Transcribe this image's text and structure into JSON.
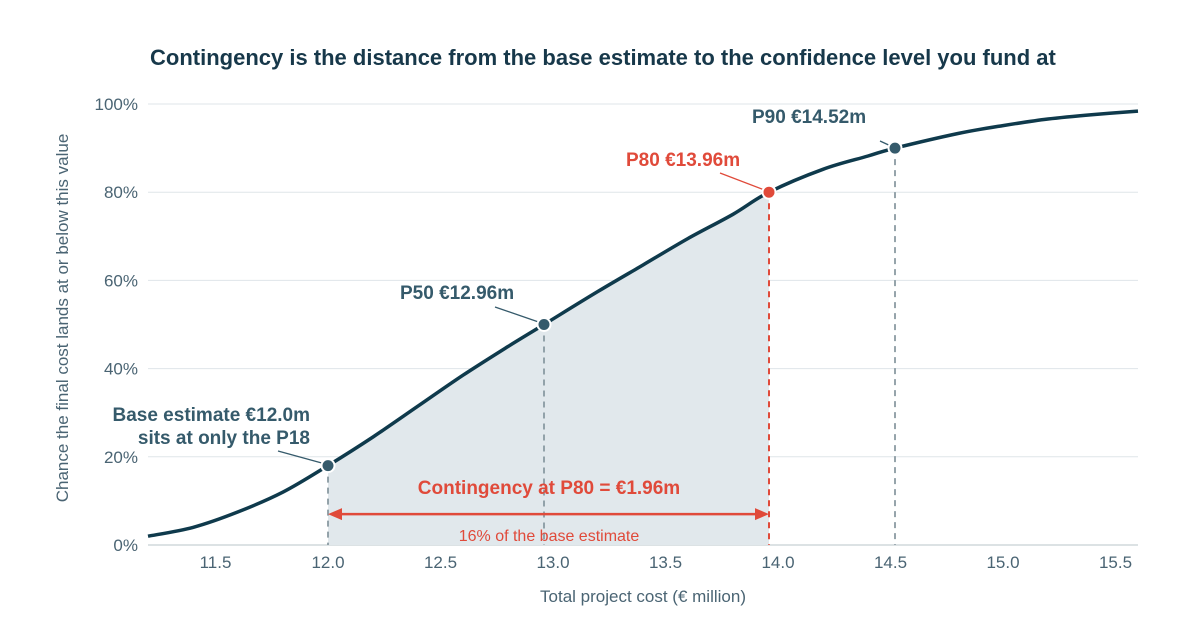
{
  "chart_data": {
    "type": "line",
    "title": "Contingency is the distance from the base estimate to the confidence level you fund at",
    "xlabel": "Total project cost   (€ million)",
    "ylabel": "Chance the final cost lands at or below this value",
    "xlim": [
      11.2,
      15.6
    ],
    "ylim": [
      0,
      100
    ],
    "x_ticks": [
      11.5,
      12.0,
      12.5,
      13.0,
      13.5,
      14.0,
      14.5,
      15.0,
      15.5
    ],
    "x_tick_labels": [
      "11.5",
      "12.0",
      "12.5",
      "13.0",
      "13.5",
      "14.0",
      "14.5",
      "15.0",
      "15.5"
    ],
    "y_ticks": [
      0,
      20,
      40,
      60,
      80,
      100
    ],
    "y_tick_labels": [
      "0%",
      "20%",
      "40%",
      "60%",
      "80%",
      "100%"
    ],
    "grid": true,
    "series": [
      {
        "x": [
          11.2,
          11.4,
          11.6,
          11.8,
          12.0,
          12.2,
          12.4,
          12.6,
          12.8,
          12.96,
          13.2,
          13.4,
          13.6,
          13.8,
          13.96,
          14.2,
          14.4,
          14.52,
          14.8,
          15.0,
          15.2,
          15.4,
          15.6
        ],
        "values": [
          2,
          4,
          7.5,
          12,
          18,
          24.5,
          31.5,
          38.5,
          45,
          50,
          57.5,
          63.5,
          69.5,
          75,
          80,
          85.2,
          88.2,
          90,
          93.3,
          95.1,
          96.6,
          97.6,
          98.4
        ]
      }
    ],
    "markers": [
      {
        "x": 12.0,
        "y": 18,
        "color": "#355a6b"
      },
      {
        "x": 12.96,
        "y": 50,
        "color": "#355a6b"
      },
      {
        "x": 13.96,
        "y": 80,
        "color": "#e04a3a"
      },
      {
        "x": 14.52,
        "y": 90,
        "color": "#355a6b"
      }
    ],
    "shaded_range": [
      12.0,
      13.96
    ],
    "contingency_arrow": {
      "from": 12.0,
      "to": 13.96,
      "y": 7
    },
    "annotations": {
      "p90": "P90  €14.52m",
      "p80": "P80  €13.96m",
      "p50": "P50  €12.96m",
      "base_line1": "Base estimate  €12.0m",
      "base_line2": "sits at only the P18",
      "contingency": "Contingency at P80  =  €1.96m",
      "contingency_pct": "16% of the base estimate"
    },
    "colors": {
      "curve": "#0f3a4c",
      "accent": "#e04a3a",
      "neutral": "#355a6b",
      "shade": "#e1e8ec",
      "dashed": "#8a9aa2"
    }
  }
}
